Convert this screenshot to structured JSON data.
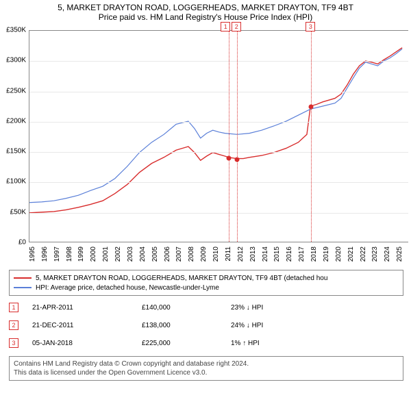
{
  "title": {
    "line1": "5, MARKET DRAYTON ROAD, LOGGERHEADS, MARKET DRAYTON, TF9 4BT",
    "line2": "Price paid vs. HM Land Registry's House Price Index (HPI)"
  },
  "chart": {
    "type": "line",
    "background_color": "#ffffff",
    "grid_color": "#e8e8e8",
    "axis_color": "#888888",
    "ylim": [
      0,
      350000
    ],
    "ytick_step": 50000,
    "yticks": [
      {
        "v": 0,
        "label": "£0"
      },
      {
        "v": 50000,
        "label": "£50K"
      },
      {
        "v": 100000,
        "label": "£100K"
      },
      {
        "v": 150000,
        "label": "£150K"
      },
      {
        "v": 200000,
        "label": "£200K"
      },
      {
        "v": 250000,
        "label": "£250K"
      },
      {
        "v": 300000,
        "label": "£300K"
      },
      {
        "v": 350000,
        "label": "£350K"
      }
    ],
    "xlim": [
      1995,
      2026
    ],
    "xticks": [
      1995,
      1996,
      1997,
      1998,
      1999,
      2000,
      2001,
      2002,
      2003,
      2004,
      2005,
      2006,
      2007,
      2008,
      2009,
      2010,
      2011,
      2012,
      2013,
      2014,
      2015,
      2016,
      2017,
      2018,
      2019,
      2020,
      2021,
      2022,
      2023,
      2024,
      2025
    ],
    "label_fontsize": 10,
    "series": [
      {
        "name": "property",
        "color": "#d82c2c",
        "line_width": 1.4,
        "data": [
          [
            1995,
            48000
          ],
          [
            1996,
            49000
          ],
          [
            1997,
            50000
          ],
          [
            1998,
            53000
          ],
          [
            1999,
            57000
          ],
          [
            2000,
            62000
          ],
          [
            2001,
            68000
          ],
          [
            2002,
            80000
          ],
          [
            2003,
            95000
          ],
          [
            2004,
            115000
          ],
          [
            2005,
            130000
          ],
          [
            2006,
            140000
          ],
          [
            2007,
            152000
          ],
          [
            2008,
            158000
          ],
          [
            2008.5,
            148000
          ],
          [
            2009,
            135000
          ],
          [
            2009.5,
            142000
          ],
          [
            2010,
            148000
          ],
          [
            2010.5,
            145000
          ],
          [
            2011,
            142000
          ],
          [
            2011.3,
            140000
          ],
          [
            2011.95,
            138000
          ],
          [
            2012.5,
            138000
          ],
          [
            2013,
            140000
          ],
          [
            2014,
            143000
          ],
          [
            2015,
            148000
          ],
          [
            2016,
            155000
          ],
          [
            2017,
            165000
          ],
          [
            2017.7,
            178000
          ],
          [
            2018,
            225000
          ],
          [
            2018.5,
            228000
          ],
          [
            2019,
            232000
          ],
          [
            2020,
            238000
          ],
          [
            2020.5,
            245000
          ],
          [
            2021,
            260000
          ],
          [
            2021.5,
            278000
          ],
          [
            2022,
            292000
          ],
          [
            2022.5,
            300000
          ],
          [
            2023,
            298000
          ],
          [
            2023.5,
            295000
          ],
          [
            2024,
            302000
          ],
          [
            2024.5,
            308000
          ],
          [
            2025,
            315000
          ],
          [
            2025.5,
            322000
          ]
        ]
      },
      {
        "name": "hpi",
        "color": "#5a7fd8",
        "line_width": 1.2,
        "data": [
          [
            1995,
            65000
          ],
          [
            1996,
            66000
          ],
          [
            1997,
            68000
          ],
          [
            1998,
            72000
          ],
          [
            1999,
            77000
          ],
          [
            2000,
            85000
          ],
          [
            2001,
            92000
          ],
          [
            2002,
            105000
          ],
          [
            2003,
            125000
          ],
          [
            2004,
            148000
          ],
          [
            2005,
            165000
          ],
          [
            2006,
            178000
          ],
          [
            2007,
            195000
          ],
          [
            2008,
            200000
          ],
          [
            2008.5,
            188000
          ],
          [
            2009,
            172000
          ],
          [
            2009.5,
            180000
          ],
          [
            2010,
            185000
          ],
          [
            2010.5,
            182000
          ],
          [
            2011,
            180000
          ],
          [
            2012,
            178000
          ],
          [
            2013,
            180000
          ],
          [
            2014,
            185000
          ],
          [
            2015,
            192000
          ],
          [
            2016,
            200000
          ],
          [
            2017,
            210000
          ],
          [
            2018,
            220000
          ],
          [
            2019,
            225000
          ],
          [
            2020,
            230000
          ],
          [
            2020.5,
            238000
          ],
          [
            2021,
            255000
          ],
          [
            2021.5,
            272000
          ],
          [
            2022,
            288000
          ],
          [
            2022.5,
            298000
          ],
          [
            2023,
            295000
          ],
          [
            2023.5,
            292000
          ],
          [
            2024,
            300000
          ],
          [
            2024.5,
            305000
          ],
          [
            2025,
            312000
          ],
          [
            2025.5,
            320000
          ]
        ]
      }
    ],
    "markers": [
      {
        "id": "1",
        "x": 2011.3,
        "y": 140000
      },
      {
        "id": "2",
        "x": 2011.95,
        "y": 138000
      },
      {
        "id": "3",
        "x": 2018.02,
        "y": 225000
      }
    ]
  },
  "legend": {
    "items": [
      {
        "color": "#d82c2c",
        "label": "5, MARKET DRAYTON ROAD, LOGGERHEADS, MARKET DRAYTON, TF9 4BT (detached hou"
      },
      {
        "color": "#5a7fd8",
        "label": "HPI: Average price, detached house, Newcastle-under-Lyme"
      }
    ]
  },
  "sales": [
    {
      "marker": "1",
      "date": "21-APR-2011",
      "price": "£140,000",
      "pct": "23% ↓ HPI"
    },
    {
      "marker": "2",
      "date": "21-DEC-2011",
      "price": "£138,000",
      "pct": "24% ↓ HPI"
    },
    {
      "marker": "3",
      "date": "05-JAN-2018",
      "price": "£225,000",
      "pct": "1% ↑ HPI"
    }
  ],
  "footer": {
    "line1": "Contains HM Land Registry data © Crown copyright and database right 2024.",
    "line2": "This data is licensed under the Open Government Licence v3.0."
  }
}
